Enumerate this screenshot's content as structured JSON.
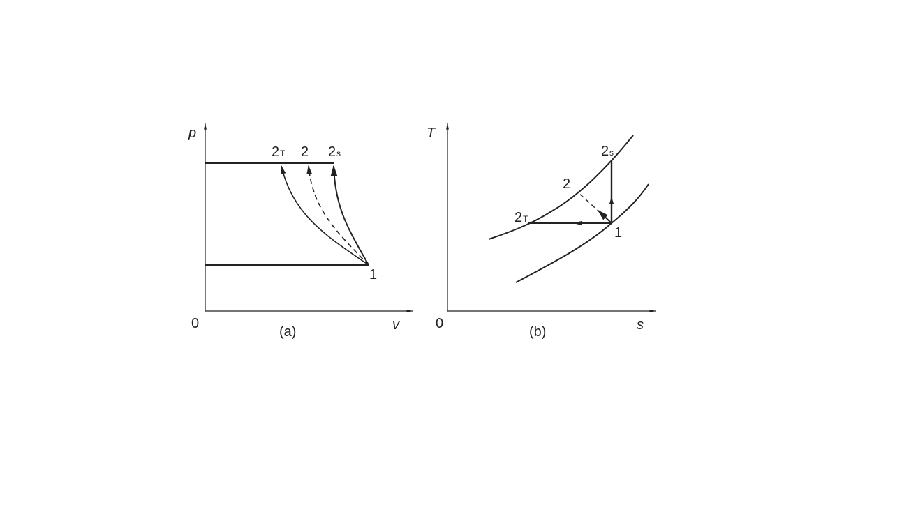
{
  "diagram_a": {
    "caption": "(a)",
    "y_axis_label": "p",
    "x_axis_label": "v",
    "origin_label": "0",
    "points": {
      "p1": "1",
      "p2": "2",
      "p2T_main": "2",
      "p2T_sub": "T",
      "p2s_main": "2",
      "p2s_sub": "s"
    }
  },
  "diagram_b": {
    "caption": "(b)",
    "y_axis_label": "T",
    "x_axis_label": "s",
    "origin_label": "0",
    "points": {
      "p1": "1",
      "p2": "2",
      "p2T_main": "2",
      "p2T_sub": "T",
      "p2s_main": "2",
      "p2s_sub": "s"
    }
  },
  "colors": {
    "stroke": "#222222",
    "background": "#ffffff"
  }
}
